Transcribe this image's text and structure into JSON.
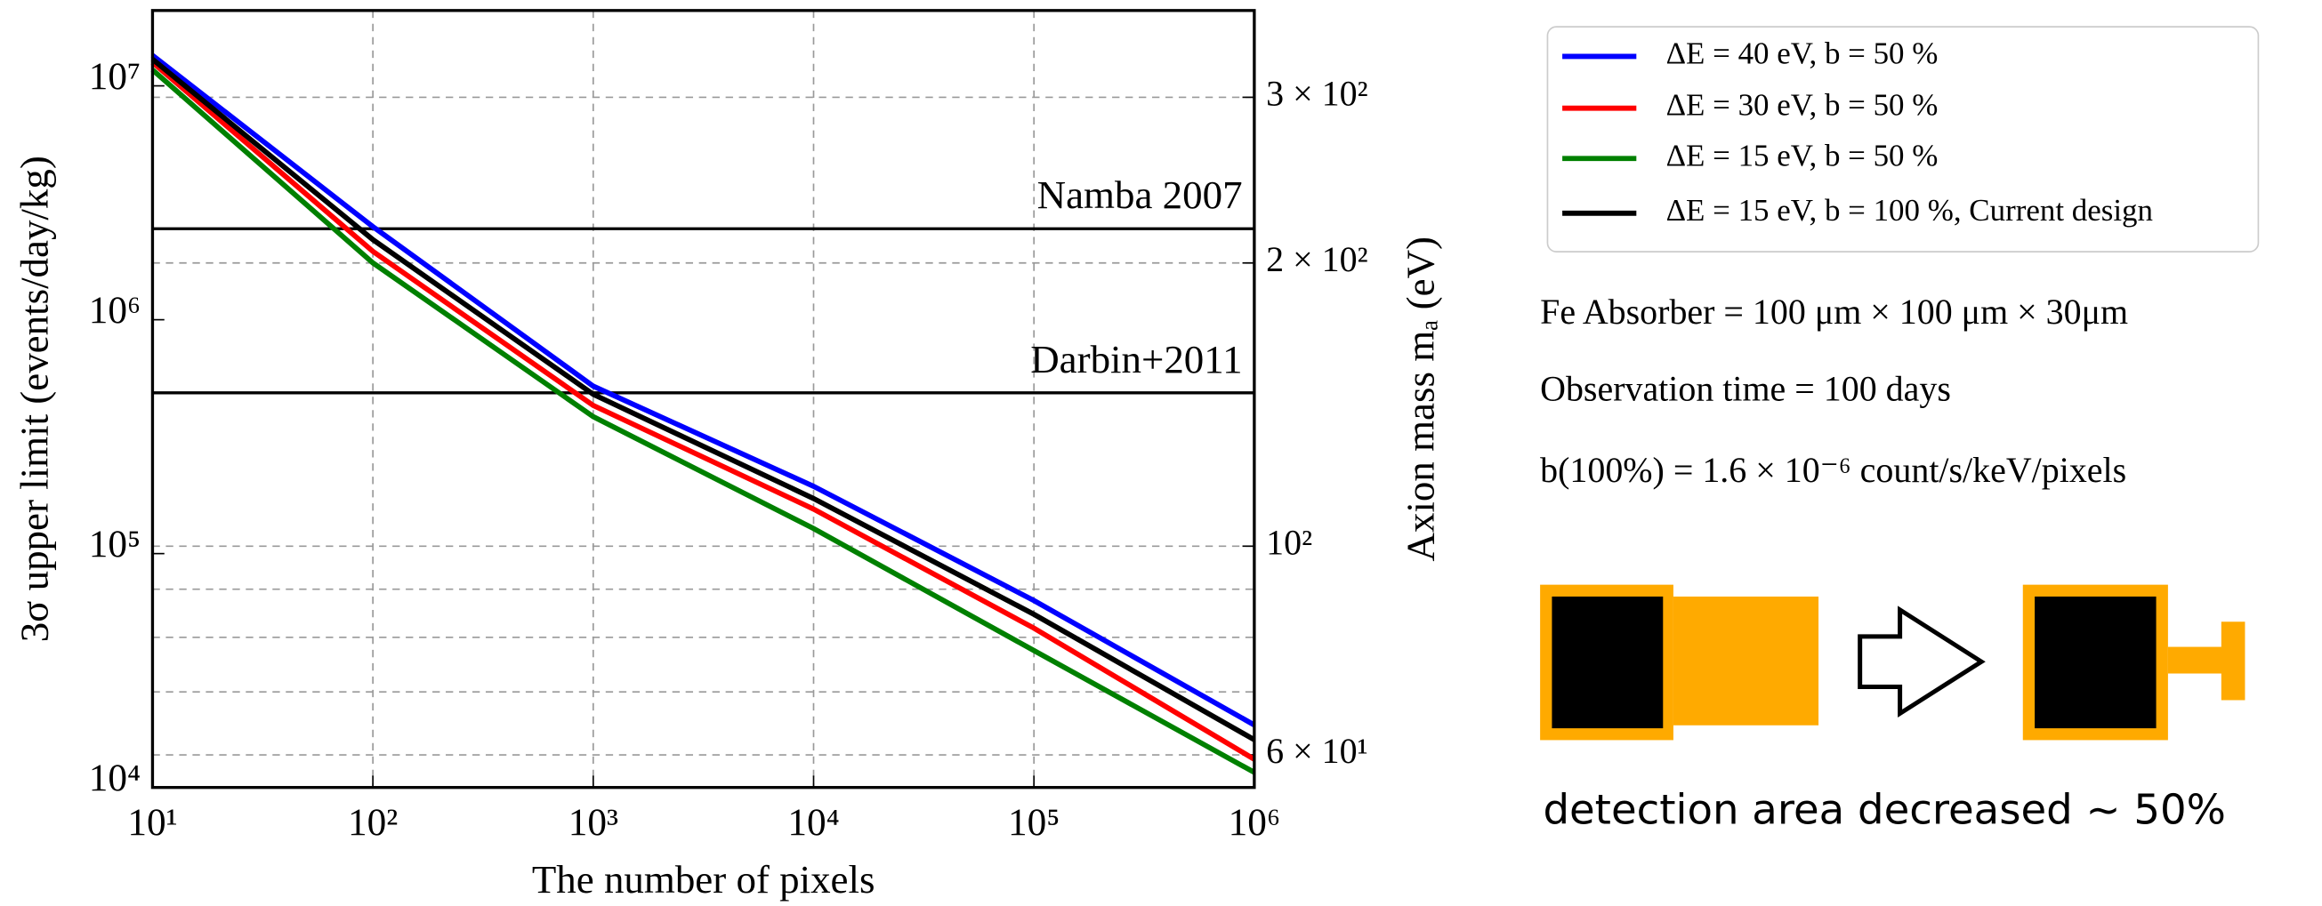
{
  "chart_data": {
    "type": "line",
    "xlabel": "The number of pixels",
    "ylabel": "3σ upper limit (events/day/kg)",
    "y2label": "Axion mass mₐ (eV)",
    "x": [
      10,
      100,
      1000,
      10000,
      100000,
      1000000
    ],
    "series": [
      {
        "name": "ΔE = 40 eV,  b = 50 %",
        "color": "#0000ff",
        "values": [
          13500000,
          2500000,
          520000,
          194000,
          63000,
          18500
        ]
      },
      {
        "name": "ΔE = 30 eV,  b = 50 %",
        "color": "#ff0000",
        "values": [
          12600000,
          1960000,
          430000,
          155000,
          48000,
          13200
        ]
      },
      {
        "name": "ΔE = 15 eV,  b = 50 %",
        "color": "#008000",
        "values": [
          11700000,
          1750000,
          385000,
          128000,
          38500,
          11600
        ]
      },
      {
        "name": "ΔE = 15 eV,  b = 100 %, Current design",
        "color": "#000000",
        "values": [
          13000000,
          2200000,
          480000,
          172000,
          55000,
          16000
        ]
      }
    ],
    "hlines": [
      {
        "label": "Namba 2007",
        "value": 2450000
      },
      {
        "label": "Darbin+2011",
        "value": 487000
      }
    ],
    "xlog": true,
    "ylog": true,
    "y2log": true,
    "xlim": [
      10,
      1000000
    ],
    "xticks": [
      {
        "value": 10,
        "label": "10¹"
      },
      {
        "value": 100,
        "label": "10²"
      },
      {
        "value": 1000,
        "label": "10³"
      },
      {
        "value": 10000,
        "label": "10⁴"
      },
      {
        "value": 100000,
        "label": "10⁵"
      },
      {
        "value": 1000000,
        "label": "10⁶"
      }
    ],
    "ylim": [
      10000,
      21000000
    ],
    "yticks": [
      {
        "value": 10000,
        "label": "10⁴"
      },
      {
        "value": 100000,
        "label": "10⁵"
      },
      {
        "value": 1000000,
        "label": "10⁶"
      },
      {
        "value": 10000000,
        "label": "10⁷"
      }
    ],
    "y2lim": [
      55.4,
      371
    ],
    "y2ticks": [
      {
        "value": 60,
        "label": "6 × 10¹"
      },
      {
        "value": 100,
        "label": "10²"
      },
      {
        "value": 200,
        "label": "2 × 10²"
      },
      {
        "value": 300,
        "label": "3 × 10²"
      }
    ],
    "y2minor": [
      70,
      80,
      90
    ],
    "grid": true,
    "legend": "outside-right"
  },
  "notes": [
    "Fe Absorber  =  100 μm × 100 μm × 30μm",
    "Observation time = 100 days",
    "b(100%) = 1.6 × 10⁻⁶ count/s/keV/pixels"
  ],
  "diagram": {
    "caption": "detection area decreased ~ 50%"
  }
}
